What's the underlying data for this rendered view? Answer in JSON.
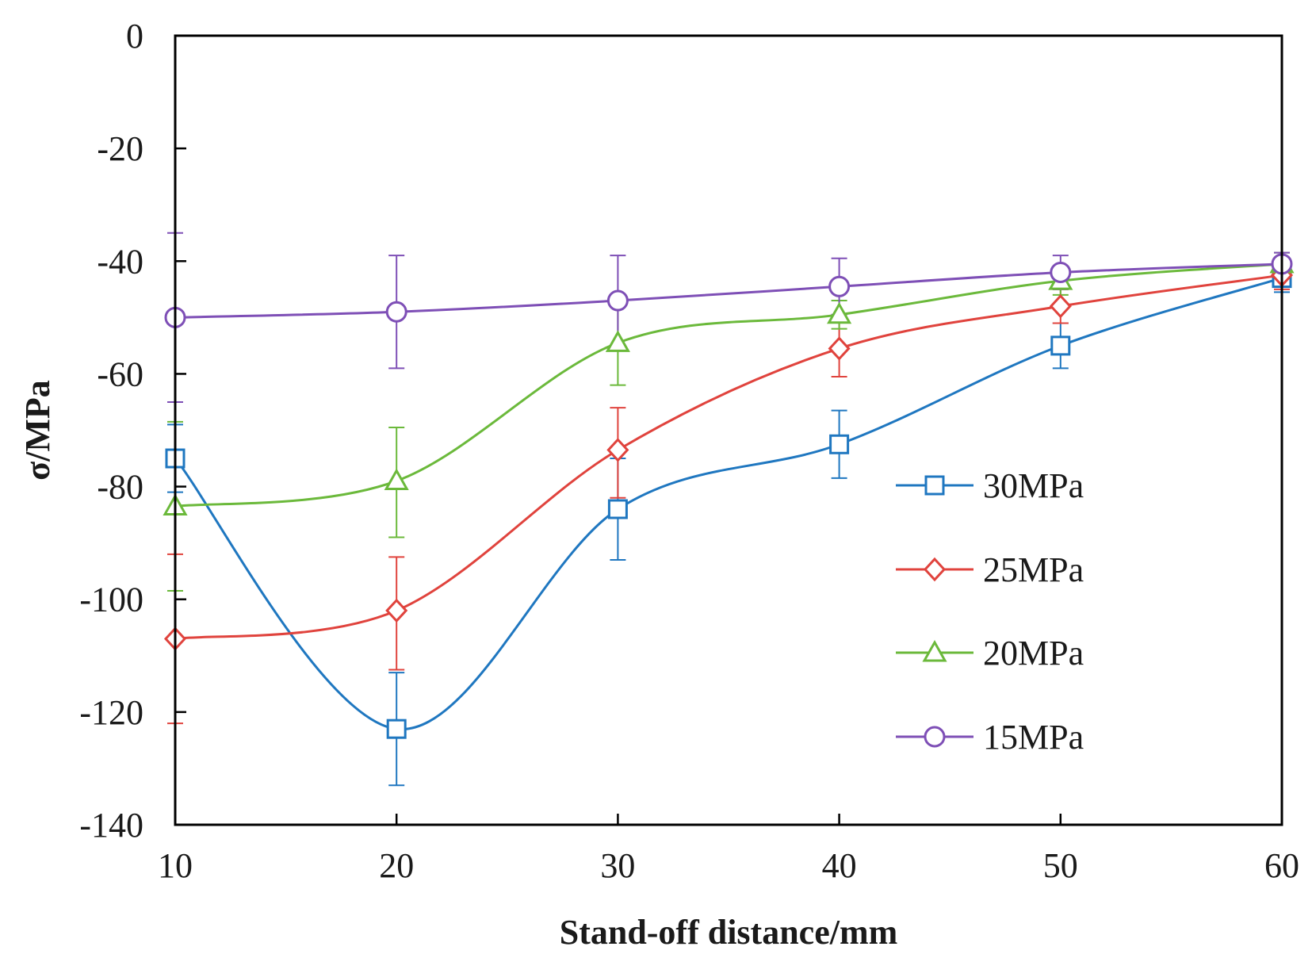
{
  "chart_data": {
    "type": "line",
    "title": "",
    "xlabel": "Stand-off distance/mm",
    "ylabel": "σ/MPa",
    "x": [
      10,
      20,
      30,
      40,
      50,
      60
    ],
    "x_ticks": [
      10,
      20,
      30,
      40,
      50,
      60
    ],
    "y_ticks": [
      0,
      -20,
      -40,
      -60,
      -80,
      -100,
      -120,
      -140
    ],
    "xlim": [
      10,
      60
    ],
    "ylim": [
      -140,
      0
    ],
    "grid": false,
    "legend_position": "right-lower",
    "series": [
      {
        "name": "30MPa",
        "color": "#1f77c0",
        "marker": "square",
        "values": [
          -75,
          -123,
          -84,
          -72.5,
          -55,
          -43
        ],
        "error": [
          [
            -69,
            -81
          ],
          [
            -113,
            -133
          ],
          [
            -75,
            -93
          ],
          [
            -66.5,
            -78.5
          ],
          [
            -51,
            -59
          ],
          [
            -40.5,
            -45.5
          ]
        ]
      },
      {
        "name": "25MPa",
        "color": "#e0433d",
        "marker": "diamond",
        "values": [
          -107,
          -102,
          -73.5,
          -55.5,
          -48,
          -42.5
        ],
        "error": [
          [
            -92,
            -122
          ],
          [
            -92.5,
            -112.5
          ],
          [
            -66,
            -82
          ],
          [
            -50.5,
            -60.5
          ],
          [
            -45,
            -51
          ],
          [
            -40,
            -45
          ]
        ]
      },
      {
        "name": "20MPa",
        "color": "#6bb93b",
        "marker": "triangle",
        "values": [
          -83.5,
          -79,
          -54.5,
          -49.5,
          -43.5,
          -40.5
        ],
        "error": [
          [
            -68.5,
            -98.5
          ],
          [
            -69.5,
            -89
          ],
          [
            -47,
            -62
          ],
          [
            -47,
            -52
          ],
          [
            -41.5,
            -46
          ],
          [
            -38.5,
            -42.5
          ]
        ]
      },
      {
        "name": "15MPa",
        "color": "#7e4fb6",
        "marker": "circle",
        "values": [
          -50,
          -49,
          -47,
          -44.5,
          -42,
          -40.5
        ],
        "error": [
          [
            -35,
            -65
          ],
          [
            -39,
            -59
          ],
          [
            -39,
            -55
          ],
          [
            -39.5,
            -49.5
          ],
          [
            -39,
            -45
          ],
          [
            -38.5,
            -42.5
          ]
        ]
      }
    ]
  }
}
